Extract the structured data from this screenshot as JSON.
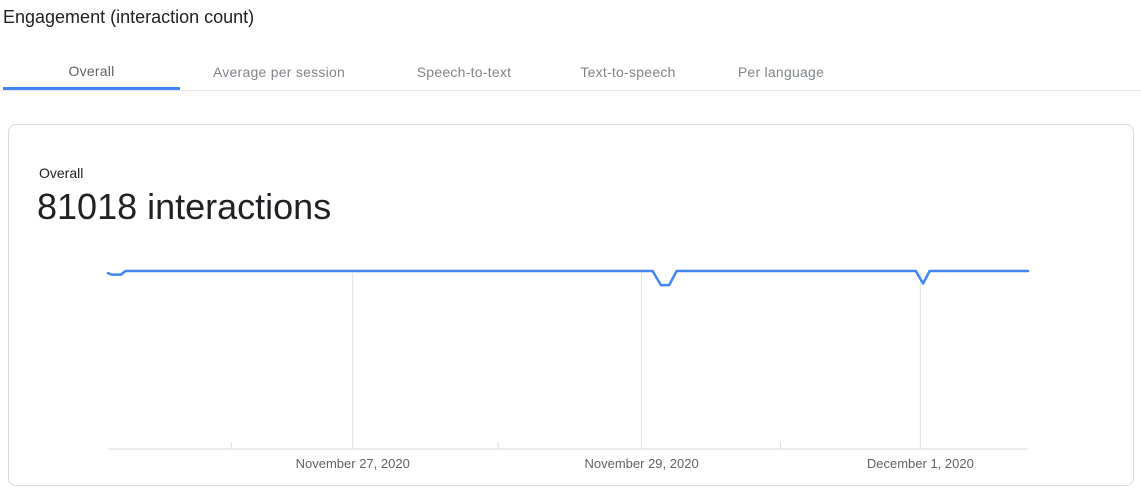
{
  "header": {
    "title": "Engagement (interaction count)"
  },
  "tabs": {
    "items": [
      {
        "label": "Overall",
        "active": true
      },
      {
        "label": "Average per session",
        "active": false
      },
      {
        "label": "Speech-to-text",
        "active": false
      },
      {
        "label": "Text-to-speech",
        "active": false
      },
      {
        "label": "Per language",
        "active": false
      }
    ]
  },
  "card": {
    "label": "Overall",
    "headline": "81018 interactions"
  },
  "colors": {
    "accent_blue": "#4285f4",
    "text_dark": "#202124",
    "tab_inactive": "#80868b",
    "tab_active": "#5f6368",
    "gridline": "#e0e0e0",
    "minor_tick": "#dadce0",
    "axis_line": "#e0e0e0",
    "axis_label": "#5f6368",
    "card_border": "#dadce0"
  },
  "chart_data": {
    "type": "line",
    "title": "Overall",
    "metric_label": "81018 interactions",
    "total_interactions": 81018,
    "legend": "none",
    "grid": "vertical-only",
    "x_axis": {
      "labels": [
        "November 27, 2020",
        "November 29, 2020",
        "December 1, 2020"
      ],
      "label_positions": [
        0.266,
        0.58,
        0.883
      ],
      "gridline_positions": [
        0.266,
        0.58,
        0.883
      ],
      "minor_tick_positions": [
        0.134,
        0.424,
        0.731
      ],
      "range_note": "approx. November 25 to December 1, 2020"
    },
    "y_axis": {
      "visible": false,
      "normalized": true,
      "plateau_value": 1.0
    },
    "series": [
      {
        "name": "Interactions",
        "color": "#4285f4",
        "points": [
          [
            0.0,
            0.988
          ],
          [
            0.004,
            0.98
          ],
          [
            0.014,
            0.98
          ],
          [
            0.019,
            1.0
          ],
          [
            0.592,
            1.0
          ],
          [
            0.601,
            0.921
          ],
          [
            0.61,
            0.921
          ],
          [
            0.618,
            1.0
          ],
          [
            0.878,
            1.0
          ],
          [
            0.886,
            0.93
          ],
          [
            0.893,
            1.0
          ],
          [
            1.0,
            1.0
          ]
        ],
        "annotations": [
          {
            "x": 0.605,
            "note": "dip near Nov 29"
          },
          {
            "x": 0.886,
            "note": "dip near Dec 1"
          }
        ]
      }
    ]
  }
}
